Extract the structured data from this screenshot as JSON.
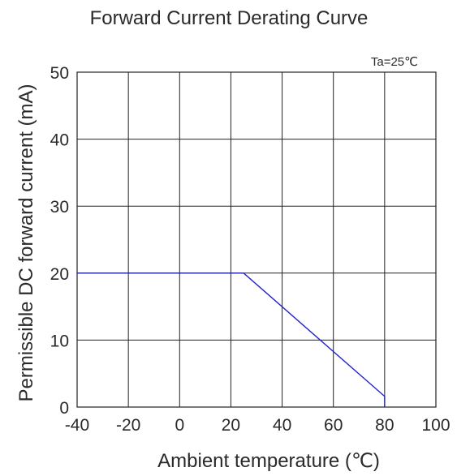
{
  "chart_data": {
    "type": "line",
    "title": "Forward Current Derating Curve",
    "xlabel": "Ambient temperature (℃)",
    "ylabel": "Permissible DC forward current (mA)",
    "annotation": "Ta=25℃",
    "xlim": [
      -40,
      100
    ],
    "ylim": [
      0,
      50
    ],
    "x_ticks": [
      -40,
      -20,
      0,
      20,
      40,
      60,
      80,
      100
    ],
    "y_ticks": [
      0,
      10,
      20,
      30,
      40,
      50
    ],
    "grid": true,
    "series": [
      {
        "color": "#1f1fd6",
        "x": [
          -40,
          25,
          80,
          80
        ],
        "y": [
          20,
          20,
          1.6,
          0
        ]
      }
    ]
  }
}
